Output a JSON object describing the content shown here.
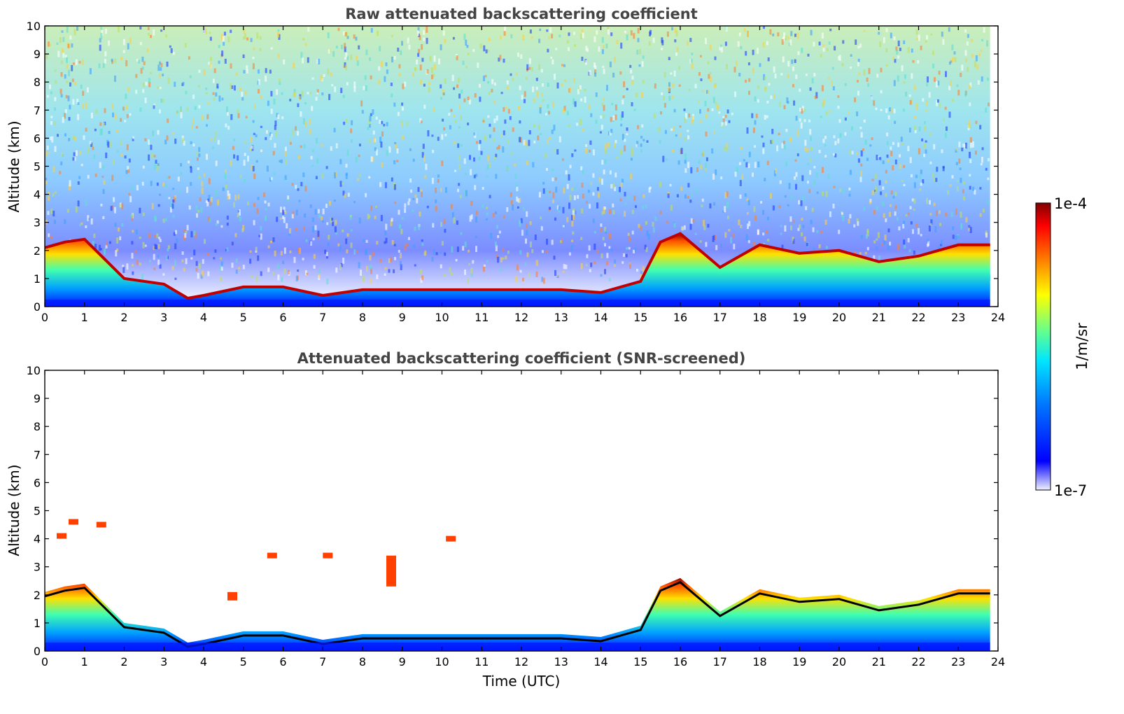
{
  "chart_data": [
    {
      "type": "heatmap",
      "title": "Raw attenuated backscattering coefficient",
      "xlabel": "",
      "ylabel": "Altitude (km)",
      "xlim": [
        0,
        24
      ],
      "ylim": [
        0,
        10
      ],
      "xticks": [
        "0",
        "1",
        "2",
        "3",
        "4",
        "5",
        "6",
        "7",
        "8",
        "9",
        "10",
        "11",
        "12",
        "13",
        "14",
        "15",
        "16",
        "17",
        "18",
        "19",
        "20",
        "21",
        "22",
        "23",
        "24"
      ],
      "yticks": [
        "0",
        "1",
        "2",
        "3",
        "4",
        "5",
        "6",
        "7",
        "8",
        "9",
        "10"
      ],
      "data_end_hour": 23.8,
      "boundary_layer_top_km": [
        [
          0,
          2.1
        ],
        [
          0.5,
          2.3
        ],
        [
          1,
          2.4
        ],
        [
          2,
          1.0
        ],
        [
          3,
          0.8
        ],
        [
          3.6,
          0.3
        ],
        [
          4,
          0.4
        ],
        [
          5,
          0.7
        ],
        [
          6,
          0.7
        ],
        [
          7,
          0.4
        ],
        [
          8,
          0.6
        ],
        [
          9,
          0.6
        ],
        [
          10,
          0.6
        ],
        [
          11,
          0.6
        ],
        [
          12,
          0.6
        ],
        [
          13,
          0.6
        ],
        [
          14,
          0.5
        ],
        [
          15,
          0.9
        ],
        [
          15.5,
          2.3
        ],
        [
          16,
          2.6
        ],
        [
          17,
          1.4
        ],
        [
          18,
          2.2
        ],
        [
          19,
          1.9
        ],
        [
          20,
          2.0
        ],
        [
          21,
          1.6
        ],
        [
          22,
          1.8
        ],
        [
          23,
          2.2
        ],
        [
          23.8,
          2.2
        ]
      ],
      "colorbar": {
        "min_label": "1e-7",
        "max_label": "1e-4",
        "label": "1/m/sr",
        "scale": "log"
      }
    },
    {
      "type": "heatmap",
      "title": "Attenuated backscattering coefficient (SNR-screened)",
      "xlabel": "Time (UTC)",
      "ylabel": "Altitude (km)",
      "xlim": [
        0,
        24
      ],
      "ylim": [
        0,
        10
      ],
      "xticks": [
        "0",
        "1",
        "2",
        "3",
        "4",
        "5",
        "6",
        "7",
        "8",
        "9",
        "10",
        "11",
        "12",
        "13",
        "14",
        "15",
        "16",
        "17",
        "18",
        "19",
        "20",
        "21",
        "22",
        "23",
        "24"
      ],
      "yticks": [
        "0",
        "1",
        "2",
        "3",
        "4",
        "5",
        "6",
        "7",
        "8",
        "9",
        "10"
      ],
      "data_end_hour": 23.8,
      "elevated_layers_km": [
        [
          0.3,
          4.0,
          4.2
        ],
        [
          0.6,
          4.5,
          4.7
        ],
        [
          1.3,
          4.4,
          4.6
        ],
        [
          4.6,
          1.8,
          2.1
        ],
        [
          5.6,
          3.3,
          3.5
        ],
        [
          7.0,
          3.3,
          3.5
        ],
        [
          8.6,
          2.3,
          3.4
        ],
        [
          10.1,
          3.9,
          4.1
        ]
      ],
      "colorbar": {
        "min_label": "1e-7",
        "max_label": "1e-4",
        "label": "1/m/sr",
        "scale": "log"
      }
    }
  ],
  "colormap": [
    "#ffffff",
    "#b0b0ff",
    "#0000ff",
    "#0080ff",
    "#00ffff",
    "#80ff80",
    "#ffff00",
    "#ff8000",
    "#ff0000",
    "#800000"
  ]
}
